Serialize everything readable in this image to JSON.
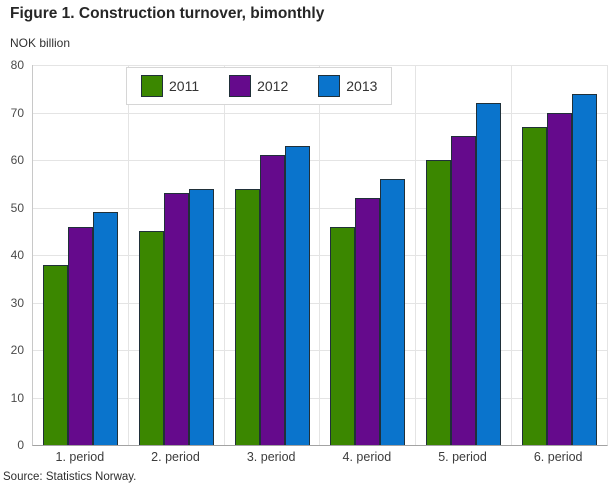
{
  "header": {
    "title": "Figure 1. Construction turnover, bimonthly",
    "unit_label": "NOK billion"
  },
  "chart_data": {
    "type": "bar",
    "title": "Figure 1. Construction turnover, bimonthly",
    "ylabel": "NOK billion",
    "categories": [
      "1. period",
      "2. period",
      "3. period",
      "4. period",
      "5. period",
      "6. period"
    ],
    "series": [
      {
        "name": "2011",
        "color": "#3b8700",
        "values": [
          38,
          45,
          54,
          46,
          60,
          67
        ]
      },
      {
        "name": "2012",
        "color": "#650a8c",
        "values": [
          46,
          53,
          61,
          52,
          65,
          70
        ]
      },
      {
        "name": "2013",
        "color": "#0a74cc",
        "values": [
          49,
          54,
          63,
          56,
          72,
          74
        ]
      }
    ],
    "ylim": [
      0,
      80
    ],
    "ytick_step": 10,
    "grid": true,
    "legend_position": "top-left-inset",
    "bar_border_color": "#203039",
    "gridline_color": "#e4e4e4"
  },
  "footer": {
    "source": "Source: Statistics Norway."
  }
}
